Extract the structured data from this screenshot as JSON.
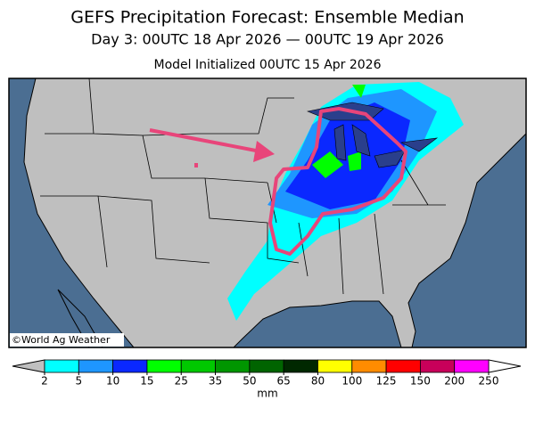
{
  "header": {
    "title": "GEFS Precipitation Forecast: Ensemble Median",
    "period": "Day 3: 00UTC 18 Apr 2026 — 00UTC 19 Apr 2026",
    "init": "Model Initialized 00UTC 15 Apr 2026"
  },
  "map": {
    "credit": "©World Ag Weather"
  },
  "colorbar": {
    "ticks": [
      2,
      5,
      10,
      15,
      25,
      35,
      50,
      65,
      80,
      100,
      125,
      150,
      200,
      250
    ],
    "colors": [
      "#00ffff",
      "#1e96ff",
      "#0a28ff",
      "#00ff00",
      "#00c800",
      "#009600",
      "#006400",
      "#002800",
      "#ffff00",
      "#ff8c00",
      "#ff0000",
      "#c8005a",
      "#ff00ff",
      "#a050d2"
    ],
    "under_color": "#bfbfbf",
    "over_color": "#ffffff",
    "unit": "mm"
  }
}
